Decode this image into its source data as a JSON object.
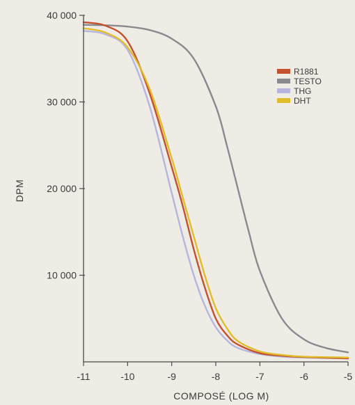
{
  "chart_data": {
    "type": "line",
    "xlabel": "COMPOSÉ (LOG M)",
    "ylabel": "DPM",
    "xlim": [
      -11,
      -5
    ],
    "ylim": [
      0,
      40000
    ],
    "x_ticks": [
      -11,
      -10,
      -9,
      -8,
      -7,
      -6,
      -5
    ],
    "x_tick_labels": [
      "-11",
      "-10",
      "-9",
      "-8",
      "-7",
      "-6",
      "-5"
    ],
    "y_ticks": [
      10000,
      20000,
      30000,
      40000
    ],
    "y_tick_labels": [
      "10 000",
      "20 000",
      "30 000",
      "40 000"
    ],
    "grid": false,
    "legend_position": "top-right",
    "series": [
      {
        "name": "R1881",
        "color": "#c4502c",
        "x": [
          -11,
          -10.5,
          -10,
          -9.5,
          -9,
          -8.75,
          -8.5,
          -8.25,
          -8,
          -7.75,
          -7.5,
          -7,
          -6.5,
          -6,
          -5
        ],
        "y": [
          39200,
          38800,
          37000,
          31000,
          22500,
          18000,
          13000,
          8600,
          5000,
          3100,
          2000,
          1000,
          700,
          550,
          400
        ]
      },
      {
        "name": "TESTO",
        "color": "#8a8a8e",
        "x": [
          -11,
          -10.5,
          -10,
          -9.5,
          -9,
          -8.5,
          -8,
          -7.75,
          -7.5,
          -7.25,
          -7,
          -6.5,
          -6,
          -5.5,
          -5
        ],
        "y": [
          38900,
          38850,
          38700,
          38300,
          37300,
          35000,
          29500,
          25000,
          20000,
          15000,
          10500,
          5000,
          2600,
          1600,
          1100
        ]
      },
      {
        "name": "THG",
        "color": "#b5b5e0",
        "x": [
          -11,
          -10.5,
          -10,
          -9.5,
          -9,
          -8.75,
          -8.5,
          -8.25,
          -8,
          -7.75,
          -7.5,
          -7,
          -6.5,
          -6,
          -5
        ],
        "y": [
          38200,
          37800,
          36000,
          29500,
          19500,
          14500,
          10000,
          6500,
          4000,
          2500,
          1600,
          900,
          600,
          500,
          400
        ]
      },
      {
        "name": "DHT",
        "color": "#e0bc2a",
        "x": [
          -11,
          -10.5,
          -10,
          -9.5,
          -9,
          -8.75,
          -8.5,
          -8.25,
          -8,
          -7.75,
          -7.5,
          -7,
          -6.5,
          -6,
          -5
        ],
        "y": [
          38500,
          38000,
          36300,
          31500,
          23500,
          19000,
          14500,
          10000,
          6200,
          3900,
          2400,
          1200,
          800,
          600,
          500
        ]
      }
    ]
  }
}
